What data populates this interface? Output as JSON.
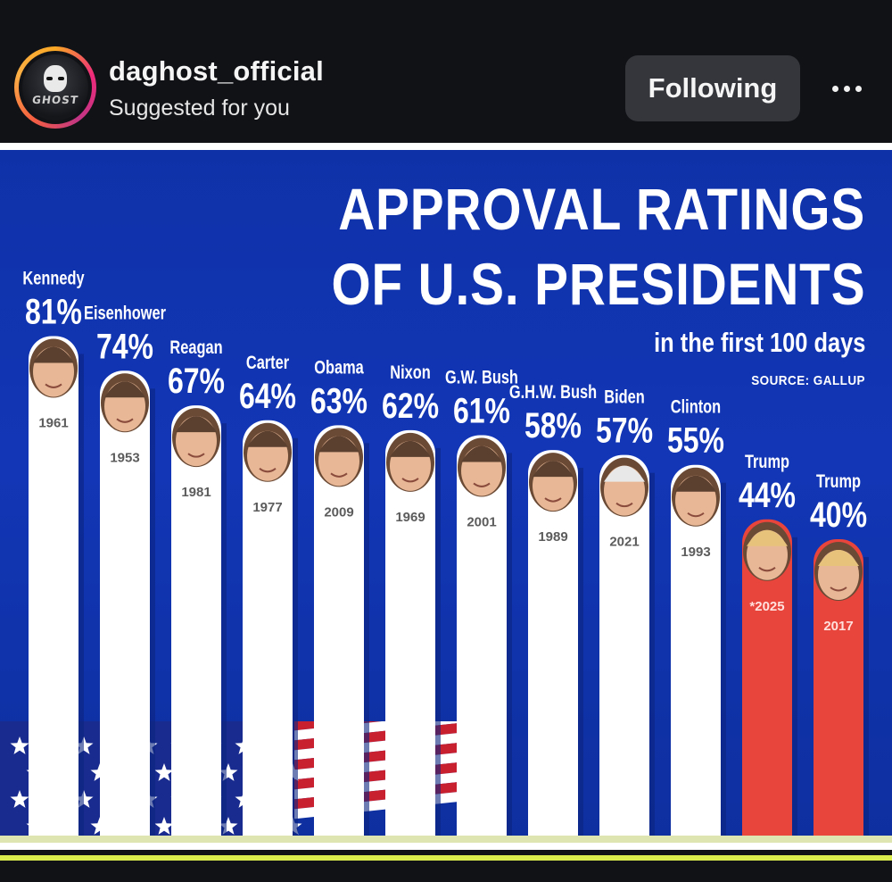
{
  "header": {
    "username": "daghost_official",
    "subtitle": "Suggested for you",
    "avatar_text": "GHOST",
    "follow_label": "Following",
    "more_icon": "more-horizontal-icon"
  },
  "title": {
    "line1": "APPROVAL RATINGS",
    "line2": "OF U.S. PRESIDENTS",
    "subtitle": "in the first 100 days",
    "source": "SOURCE: GALLUP"
  },
  "colors": {
    "background": "#1236b6",
    "bar_default": "#ffffff",
    "bar_highlight": "#e8453c",
    "text": "#ffffff"
  },
  "chart_data": {
    "type": "bar",
    "title": "APPROVAL RATINGS OF U.S. PRESIDENTS in the first 100 days",
    "source": "SOURCE: GALLUP",
    "ylim": [
      0,
      100
    ],
    "bars": [
      {
        "name": "Kennedy",
        "value": 81,
        "label": "81%",
        "year": "1961",
        "highlight": false
      },
      {
        "name": "Eisenhower",
        "value": 74,
        "label": "74%",
        "year": "1953",
        "highlight": false
      },
      {
        "name": "Reagan",
        "value": 67,
        "label": "67%",
        "year": "1981",
        "highlight": false
      },
      {
        "name": "Carter",
        "value": 64,
        "label": "64%",
        "year": "1977",
        "highlight": false
      },
      {
        "name": "Obama",
        "value": 63,
        "label": "63%",
        "year": "2009",
        "highlight": false
      },
      {
        "name": "Nixon",
        "value": 62,
        "label": "62%",
        "year": "1969",
        "highlight": false
      },
      {
        "name": "G.W. Bush",
        "value": 61,
        "label": "61%",
        "year": "2001",
        "highlight": false
      },
      {
        "name": "G.H.W. Bush",
        "value": 58,
        "label": "58%",
        "year": "1989",
        "highlight": false
      },
      {
        "name": "Biden",
        "value": 57,
        "label": "57%",
        "year": "2021",
        "highlight": false
      },
      {
        "name": "Clinton",
        "value": 55,
        "label": "55%",
        "year": "1993",
        "highlight": false
      },
      {
        "name": "Trump",
        "value": 44,
        "label": "44%",
        "year": "*2025",
        "highlight": true
      },
      {
        "name": "Trump",
        "value": 40,
        "label": "40%",
        "year": "2017",
        "highlight": true
      }
    ]
  }
}
